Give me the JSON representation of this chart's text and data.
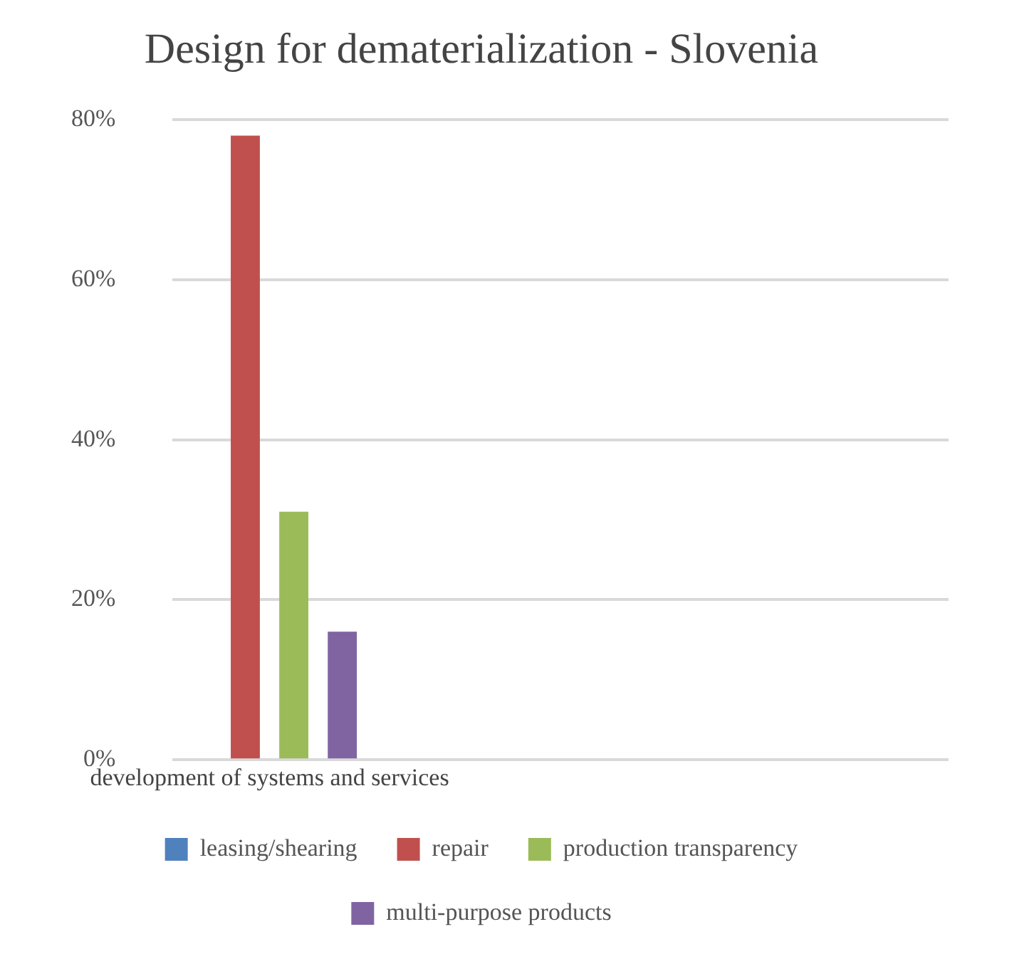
{
  "chart_data": {
    "type": "bar",
    "title": "Design for dematerialization - Slovenia",
    "categories": [
      "development of systems and services",
      null,
      null,
      null
    ],
    "series": [
      {
        "name": "leasing/shearing",
        "color": "#4f81bd",
        "values": [
          0,
          null,
          null,
          null
        ]
      },
      {
        "name": "repair",
        "color": "#c0504d",
        "values": [
          78,
          null,
          null,
          null
        ]
      },
      {
        "name": "production transparency",
        "color": "#9bbb59",
        "values": [
          31,
          null,
          null,
          null
        ]
      },
      {
        "name": "multi-purpose products",
        "color": "#8064a2",
        "values": [
          16,
          null,
          null,
          null
        ]
      }
    ],
    "ylim": [
      0,
      80
    ],
    "yticks": [
      {
        "value": 0,
        "label": "0%"
      },
      {
        "value": 20,
        "label": "20%"
      },
      {
        "value": 40,
        "label": "40%"
      },
      {
        "value": 60,
        "label": "60%"
      },
      {
        "value": 80,
        "label": "80%"
      }
    ],
    "grid": "y",
    "legend": "bottom"
  }
}
